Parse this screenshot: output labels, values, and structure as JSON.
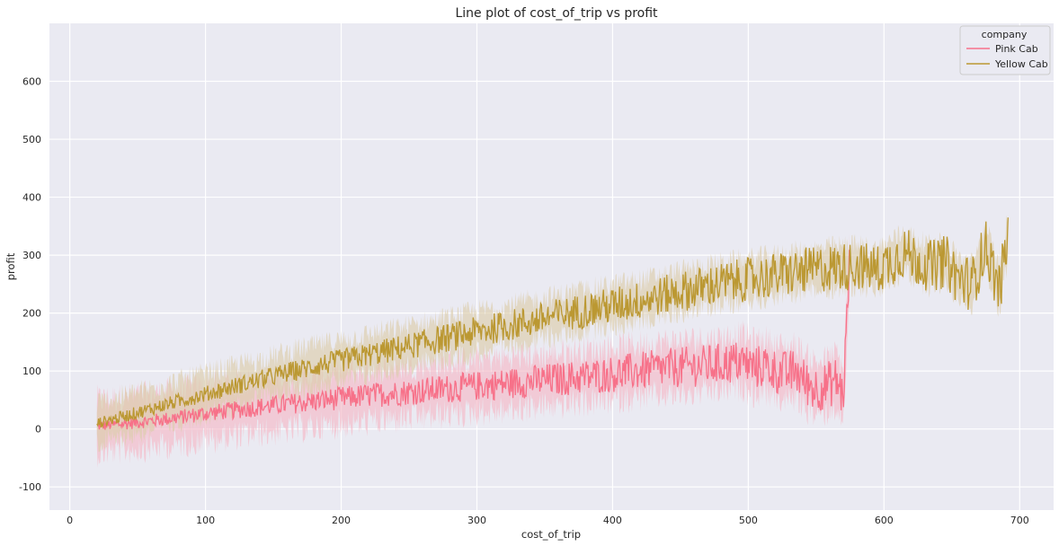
{
  "chart_data": {
    "type": "line",
    "title": "Line plot of cost_of_trip vs profit",
    "xlabel": "cost_of_trip",
    "ylabel": "profit",
    "xlim": [
      -15,
      725
    ],
    "ylim": [
      -140,
      700
    ],
    "xticks": [
      0,
      100,
      200,
      300,
      400,
      500,
      600,
      700
    ],
    "yticks": [
      -100,
      0,
      100,
      200,
      300,
      400,
      500,
      600
    ],
    "grid": true,
    "legend": {
      "title": "company",
      "placement": "top-right"
    },
    "series": [
      {
        "name": "Pink Cab",
        "color": "#f77189",
        "band_color": "#f4b9c6",
        "points": [
          [
            20,
            5
          ],
          [
            40,
            9
          ],
          [
            60,
            14
          ],
          [
            80,
            20
          ],
          [
            100,
            27
          ],
          [
            120,
            32
          ],
          [
            140,
            38
          ],
          [
            160,
            43
          ],
          [
            180,
            48
          ],
          [
            200,
            53
          ],
          [
            220,
            58
          ],
          [
            240,
            62
          ],
          [
            260,
            66
          ],
          [
            280,
            70
          ],
          [
            300,
            74
          ],
          [
            320,
            78
          ],
          [
            340,
            82
          ],
          [
            360,
            86
          ],
          [
            380,
            90
          ],
          [
            400,
            95
          ],
          [
            420,
            100
          ],
          [
            440,
            105
          ],
          [
            460,
            108
          ],
          [
            480,
            112
          ],
          [
            495,
            117
          ],
          [
            505,
            105
          ],
          [
            512,
            110
          ],
          [
            520,
            100
          ],
          [
            528,
            95
          ],
          [
            535,
            100
          ],
          [
            542,
            80
          ],
          [
            550,
            70
          ],
          [
            558,
            75
          ],
          [
            565,
            85
          ],
          [
            570,
            55
          ],
          [
            575,
            305
          ]
        ],
        "band_half_width": 45
      },
      {
        "name": "Yellow Cab",
        "color": "#bb9832",
        "band_color": "#dcccaa",
        "points": [
          [
            20,
            10
          ],
          [
            40,
            22
          ],
          [
            60,
            35
          ],
          [
            80,
            48
          ],
          [
            100,
            60
          ],
          [
            120,
            73
          ],
          [
            140,
            85
          ],
          [
            160,
            97
          ],
          [
            180,
            108
          ],
          [
            200,
            118
          ],
          [
            220,
            128
          ],
          [
            240,
            138
          ],
          [
            260,
            148
          ],
          [
            280,
            158
          ],
          [
            300,
            168
          ],
          [
            320,
            177
          ],
          [
            340,
            186
          ],
          [
            360,
            196
          ],
          [
            380,
            205
          ],
          [
            400,
            213
          ],
          [
            420,
            222
          ],
          [
            440,
            232
          ],
          [
            460,
            242
          ],
          [
            480,
            251
          ],
          [
            500,
            258
          ],
          [
            520,
            265
          ],
          [
            540,
            272
          ],
          [
            560,
            278
          ],
          [
            580,
            282
          ],
          [
            595,
            275
          ],
          [
            605,
            290
          ],
          [
            615,
            305
          ],
          [
            625,
            290
          ],
          [
            635,
            280
          ],
          [
            645,
            290
          ],
          [
            655,
            260
          ],
          [
            665,
            250
          ],
          [
            675,
            315
          ],
          [
            685,
            240
          ],
          [
            692,
            340
          ]
        ],
        "band_half_width": 35
      }
    ]
  }
}
